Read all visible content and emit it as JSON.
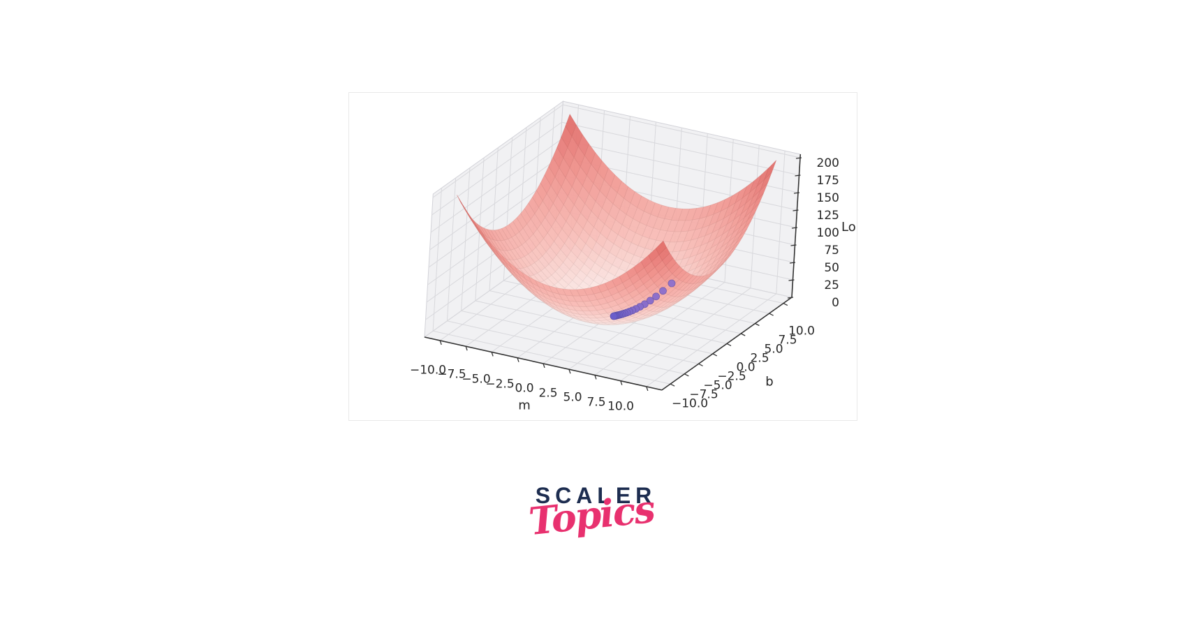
{
  "page": {
    "background": "#ffffff"
  },
  "chart_data": {
    "type": "surface3d",
    "title": "",
    "description": "3D bowl-shaped regression loss surface with gradient-descent path shown as purple points converging to the minimum",
    "xlabel": "m",
    "ylabel": "b",
    "zlabel": "Lo",
    "x_ticks": [
      "−10.0",
      "−7.5",
      "−5.0",
      "−2.5",
      "0.0",
      "2.5",
      "5.0",
      "7.5",
      "10.0"
    ],
    "y_ticks": [
      "−10.0",
      "−7.5",
      "−5.0",
      "−2.5",
      "0.0",
      "2.5",
      "5.0",
      "7.5",
      "10.0"
    ],
    "z_ticks_top_to_bottom": [
      "200",
      "175",
      "150",
      "125",
      "100",
      "75",
      "50",
      "25",
      "0"
    ],
    "x_tick_values": [
      -10,
      -7.5,
      -5,
      -2.5,
      0,
      2.5,
      5,
      7.5,
      10
    ],
    "y_tick_values": [
      -10,
      -7.5,
      -5,
      -2.5,
      0,
      2.5,
      5,
      7.5,
      10
    ],
    "z_tick_values": [
      0,
      25,
      50,
      75,
      100,
      125,
      150,
      175,
      200
    ],
    "xlim": [
      -11.5,
      11.5
    ],
    "ylim": [
      -11.5,
      11.5
    ],
    "zlim": [
      0,
      205
    ],
    "grid": true,
    "legend": null,
    "pane_color": "#f1f1f3",
    "pane_edge": "#d2d2d8",
    "grid_color": "#d8d8dc",
    "axis_color": "#333333",
    "surface": {
      "domain_m": [
        -10,
        10
      ],
      "domain_b": [
        -10,
        10
      ],
      "z_formula_estimate": "loss ≈ m² + b²",
      "z_max": 200,
      "colormap": [
        "#fdf4f2",
        "#f8bcb6",
        "#f0918b",
        "#df6360"
      ]
    },
    "descent_points": [
      [
        3.5,
        4.6,
        33.4
      ],
      [
        3.05,
        3.95,
        24.9
      ],
      [
        2.7,
        3.4,
        18.9
      ],
      [
        2.4,
        2.95,
        14.5
      ],
      [
        2.1,
        2.55,
        10.9
      ],
      [
        1.85,
        2.2,
        8.3
      ],
      [
        1.62,
        1.9,
        6.2
      ],
      [
        1.42,
        1.65,
        4.7
      ],
      [
        1.25,
        1.45,
        3.7
      ],
      [
        1.1,
        1.28,
        2.8
      ],
      [
        0.97,
        1.12,
        2.2
      ],
      [
        0.85,
        0.98,
        1.7
      ],
      [
        0.74,
        0.86,
        1.3
      ],
      [
        0.64,
        0.75,
        1.0
      ],
      [
        0.55,
        0.65,
        0.72
      ],
      [
        0.47,
        0.56,
        0.53
      ],
      [
        0.4,
        0.48,
        0.39
      ],
      [
        0.33,
        0.4,
        0.27
      ]
    ],
    "scatter_color_high": "#9272cb",
    "scatter_color_low": "#6a5ecb"
  },
  "logo": {
    "brand": "SCALER",
    "sub": "Topics",
    "brand_color": "#1d2d50",
    "sub_color": "#e8316f"
  }
}
